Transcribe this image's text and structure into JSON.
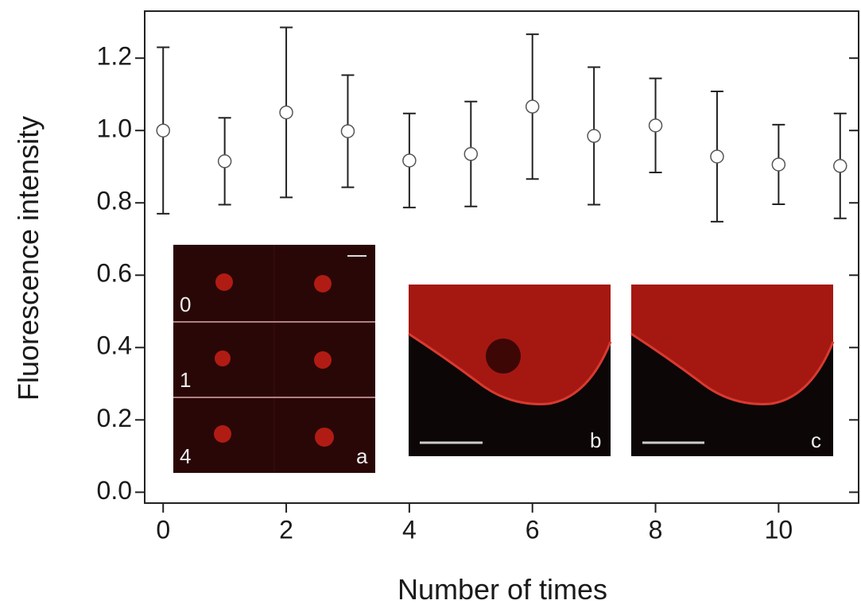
{
  "chart_data": {
    "type": "scatter",
    "x_label": "Number of times",
    "y_label": "Fluorescence intensity",
    "xlim": [
      -0.3,
      11.3
    ],
    "ylim": [
      -0.03,
      1.33
    ],
    "xticks": [
      0,
      2,
      4,
      6,
      8,
      10
    ],
    "yticks": [
      {
        "value": 0,
        "label": "0.0"
      },
      0.2,
      0.4,
      0.6,
      0.8,
      {
        "value": 1,
        "label": "1.0"
      },
      1.2
    ],
    "x": [
      0,
      1,
      2,
      3,
      4,
      5,
      6,
      7,
      8,
      9,
      10,
      11
    ],
    "series": [
      {
        "color": "#555555",
        "values": [
          1.0,
          0.915,
          1.05,
          0.998,
          0.917,
          0.935,
          1.066,
          0.985,
          1.014,
          0.928,
          0.906,
          0.902
        ],
        "errors": [
          0.23,
          0.12,
          0.235,
          0.155,
          0.13,
          0.145,
          0.2,
          0.19,
          0.13,
          0.18,
          0.11,
          0.145
        ]
      }
    ],
    "insets": [
      {
        "label": "a",
        "rows": [
          "0",
          "1",
          "4"
        ]
      },
      {
        "label": "b"
      },
      {
        "label": "c"
      }
    ]
  }
}
